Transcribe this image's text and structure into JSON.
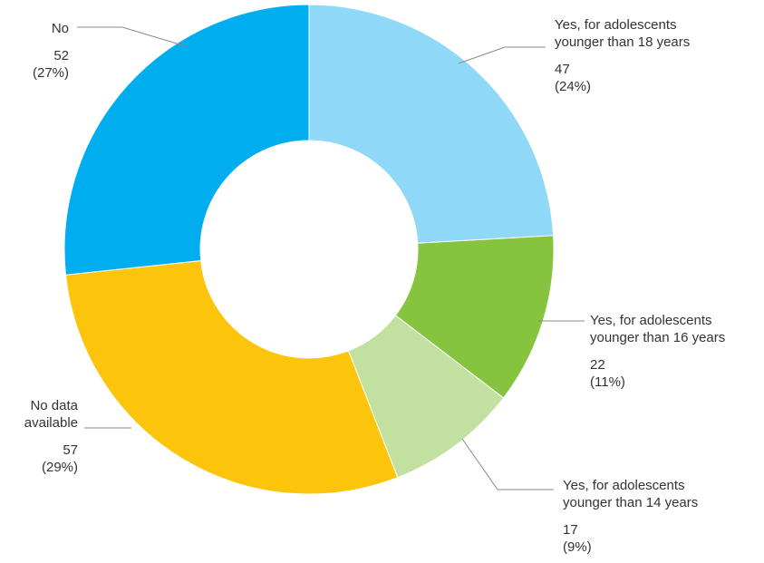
{
  "chart_data": {
    "type": "pie",
    "donut": true,
    "slices": [
      {
        "label_lines": [
          "Yes, for adolescents",
          "younger than 18 years"
        ],
        "value": 47,
        "value_text": "47",
        "pct_text": "(24%)",
        "color": "#8fd8f8"
      },
      {
        "label_lines": [
          "Yes, for adolescents",
          "younger than 16 years"
        ],
        "value": 22,
        "value_text": "22",
        "pct_text": "(11%)",
        "color": "#86c440"
      },
      {
        "label_lines": [
          "Yes, for adolescents",
          "younger than 14 years"
        ],
        "value": 17,
        "value_text": "17",
        "pct_text": "(9%)",
        "color": "#c2e0a0"
      },
      {
        "label_lines": [
          "No data",
          "available"
        ],
        "value": 57,
        "value_text": "57",
        "pct_text": "(29%)",
        "color": "#fcc50c"
      },
      {
        "label_lines": [
          "No"
        ],
        "value": 52,
        "value_text": "52",
        "pct_text": "(27%)",
        "color": "#00aeef"
      }
    ]
  }
}
